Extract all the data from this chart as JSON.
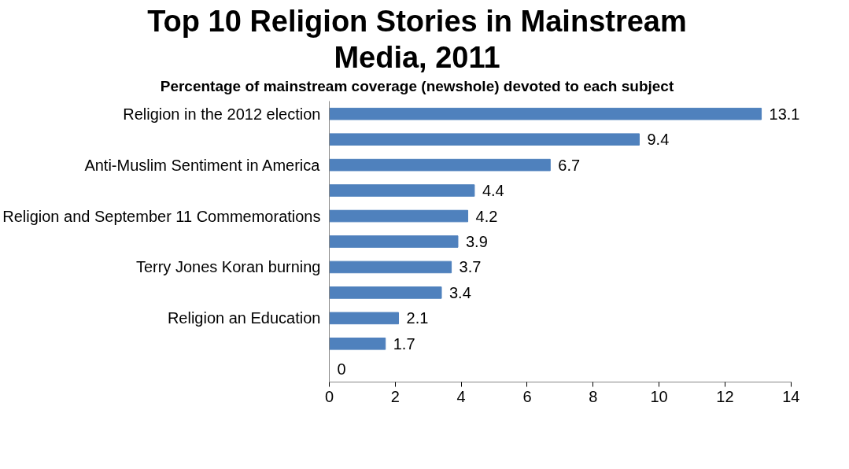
{
  "chart_data": {
    "type": "bar",
    "orientation": "horizontal",
    "title": "Top 10 Religion Stories in Mainstream Media, 2011",
    "subtitle": "Percentage of mainstream coverage (newshole) devoted to each subject",
    "categories": [
      "Religion in the 2012 election",
      null,
      "Anti-Muslim Sentiment in America",
      null,
      "Religion and September 11 Commemorations",
      null,
      "Terry Jones Koran burning",
      null,
      "Religion an Education",
      null,
      null
    ],
    "values": [
      13.1,
      9.4,
      6.7,
      4.4,
      4.2,
      3.9,
      3.7,
      3.4,
      2.1,
      1.7,
      0
    ],
    "color": "#4f81bd",
    "xlim": [
      0,
      14
    ],
    "xticks": [
      0,
      2,
      4,
      6,
      8,
      10,
      12,
      14
    ],
    "data_labels": true,
    "grid": false,
    "legend": false
  }
}
